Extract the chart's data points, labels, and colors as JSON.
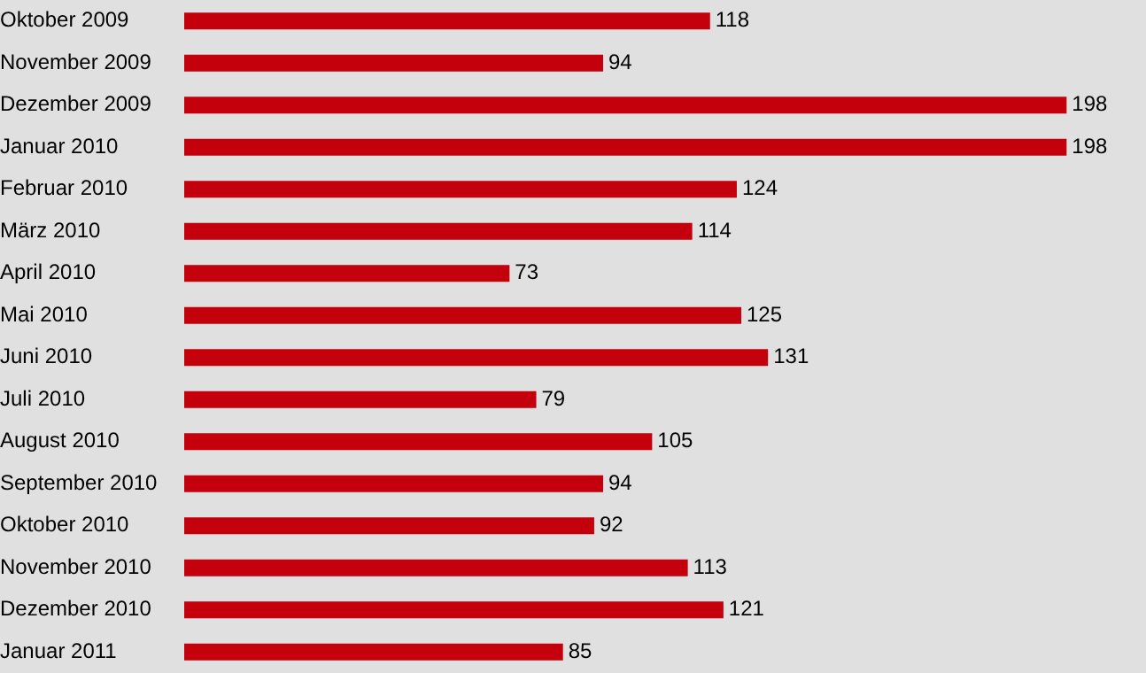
{
  "chart_data": {
    "type": "bar",
    "orientation": "horizontal",
    "categories": [
      "Oktober 2009",
      "November 2009",
      "Dezember 2009",
      "Januar 2010",
      "Februar 2010",
      "März 2010",
      "April 2010",
      "Mai 2010",
      "Juni 2010",
      "Juli 2010",
      "August 2010",
      "September 2010",
      "Oktober 2010",
      "November 2010",
      "Dezember 2010",
      "Januar 2011"
    ],
    "values": [
      118,
      94,
      198,
      198,
      124,
      114,
      73,
      125,
      131,
      79,
      105,
      94,
      92,
      113,
      121,
      85
    ],
    "color": "#c4000c",
    "data_labels": true
  }
}
